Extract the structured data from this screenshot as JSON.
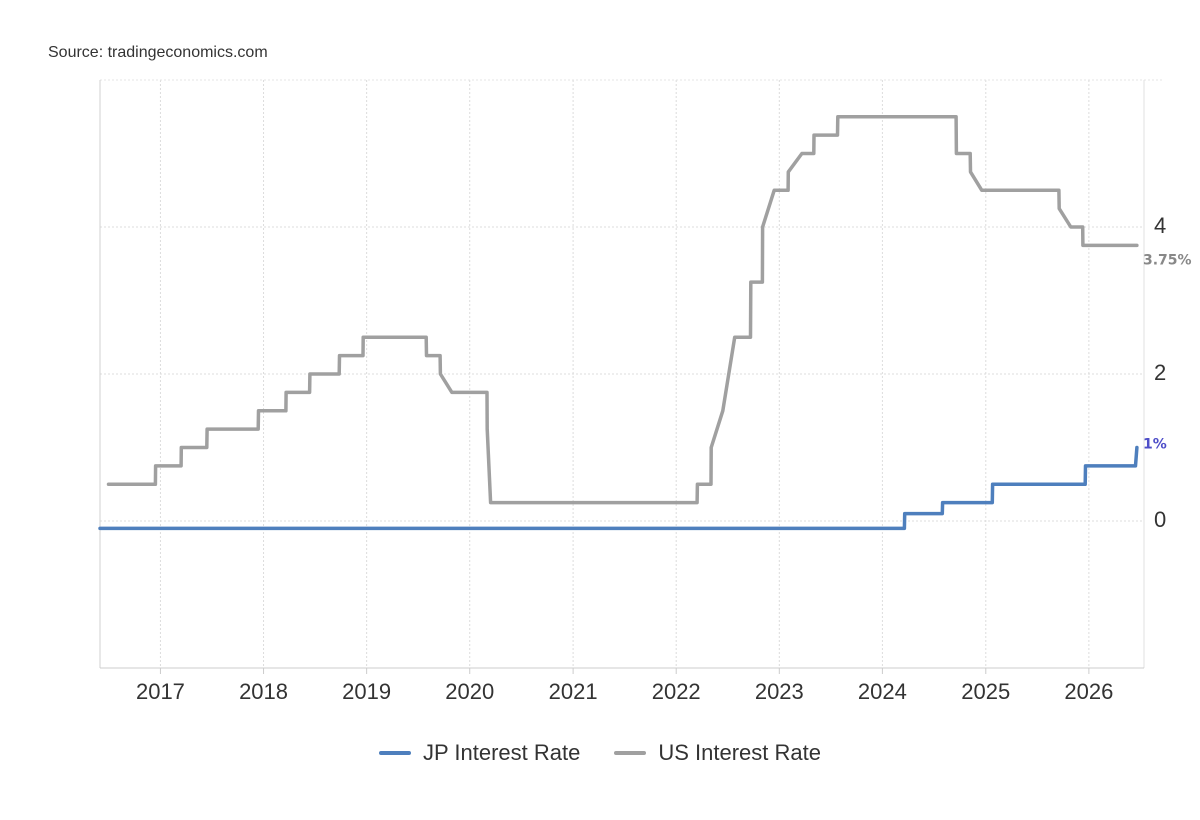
{
  "source": "Source: tradingeconomics.com",
  "chart_data": {
    "type": "line",
    "x_axis": {
      "type": "date",
      "range": [
        "2016-06-01",
        "2026-07-01"
      ],
      "tick_labels": [
        "2017",
        "2018",
        "2019",
        "2020",
        "2021",
        "2022",
        "2023",
        "2024",
        "2025",
        "2026"
      ]
    },
    "y_axis": {
      "range": [
        -2,
        6
      ],
      "tick_values": [
        0,
        2,
        4
      ],
      "tick_labels": [
        "0",
        "2",
        "4"
      ],
      "position": "right"
    },
    "grid": true,
    "legend": "bottom",
    "series": [
      {
        "name": "JP Interest Rate",
        "color": "#4e7fbd",
        "end_label": "1%",
        "end_label_color": "#4e4ec8",
        "points": [
          [
            "2016-06-01",
            -0.1
          ],
          [
            "2024-03-19",
            -0.1
          ],
          [
            "2024-03-20",
            0.1
          ],
          [
            "2024-07-31",
            0.1
          ],
          [
            "2024-08-01",
            0.25
          ],
          [
            "2025-01-24",
            0.25
          ],
          [
            "2025-01-25",
            0.5
          ],
          [
            "2025-12-19",
            0.5
          ],
          [
            "2025-12-20",
            0.75
          ],
          [
            "2026-06-15",
            0.75
          ],
          [
            "2026-06-20",
            1.0
          ]
        ]
      },
      {
        "name": "US Interest Rate",
        "color": "#a0a0a0",
        "end_label": "3.75%",
        "end_label_color": "#888888",
        "points": [
          [
            "2016-07-01",
            0.5
          ],
          [
            "2016-12-14",
            0.5
          ],
          [
            "2016-12-15",
            0.75
          ],
          [
            "2017-03-15",
            0.75
          ],
          [
            "2017-03-16",
            1.0
          ],
          [
            "2017-06-14",
            1.0
          ],
          [
            "2017-06-15",
            1.25
          ],
          [
            "2017-12-13",
            1.25
          ],
          [
            "2017-12-14",
            1.5
          ],
          [
            "2018-03-21",
            1.5
          ],
          [
            "2018-03-22",
            1.75
          ],
          [
            "2018-06-13",
            1.75
          ],
          [
            "2018-06-14",
            2.0
          ],
          [
            "2018-09-26",
            2.0
          ],
          [
            "2018-09-27",
            2.25
          ],
          [
            "2018-12-19",
            2.25
          ],
          [
            "2018-12-20",
            2.5
          ],
          [
            "2019-07-31",
            2.5
          ],
          [
            "2019-08-01",
            2.25
          ],
          [
            "2019-09-18",
            2.25
          ],
          [
            "2019-09-19",
            2.0
          ],
          [
            "2019-10-30",
            1.75
          ],
          [
            "2020-03-02",
            1.75
          ],
          [
            "2020-03-03",
            1.25
          ],
          [
            "2020-03-15",
            0.25
          ],
          [
            "2022-03-16",
            0.25
          ],
          [
            "2022-03-17",
            0.5
          ],
          [
            "2022-05-04",
            0.5
          ],
          [
            "2022-05-05",
            1.0
          ],
          [
            "2022-06-15",
            1.5
          ],
          [
            "2022-07-27",
            2.5
          ],
          [
            "2022-09-21",
            2.5
          ],
          [
            "2022-09-22",
            3.25
          ],
          [
            "2022-11-02",
            3.25
          ],
          [
            "2022-11-03",
            4.0
          ],
          [
            "2022-12-14",
            4.5
          ],
          [
            "2023-02-01",
            4.5
          ],
          [
            "2023-02-02",
            4.75
          ],
          [
            "2023-03-22",
            5.0
          ],
          [
            "2023-05-03",
            5.0
          ],
          [
            "2023-05-04",
            5.25
          ],
          [
            "2023-07-26",
            5.25
          ],
          [
            "2023-07-27",
            5.5
          ],
          [
            "2024-09-18",
            5.5
          ],
          [
            "2024-09-19",
            5.0
          ],
          [
            "2024-11-07",
            5.0
          ],
          [
            "2024-11-08",
            4.75
          ],
          [
            "2024-12-18",
            4.5
          ],
          [
            "2025-09-17",
            4.5
          ],
          [
            "2025-09-18",
            4.25
          ],
          [
            "2025-10-29",
            4.0
          ],
          [
            "2025-12-10",
            4.0
          ],
          [
            "2025-12-11",
            3.75
          ],
          [
            "2026-06-20",
            3.75
          ]
        ]
      }
    ]
  }
}
